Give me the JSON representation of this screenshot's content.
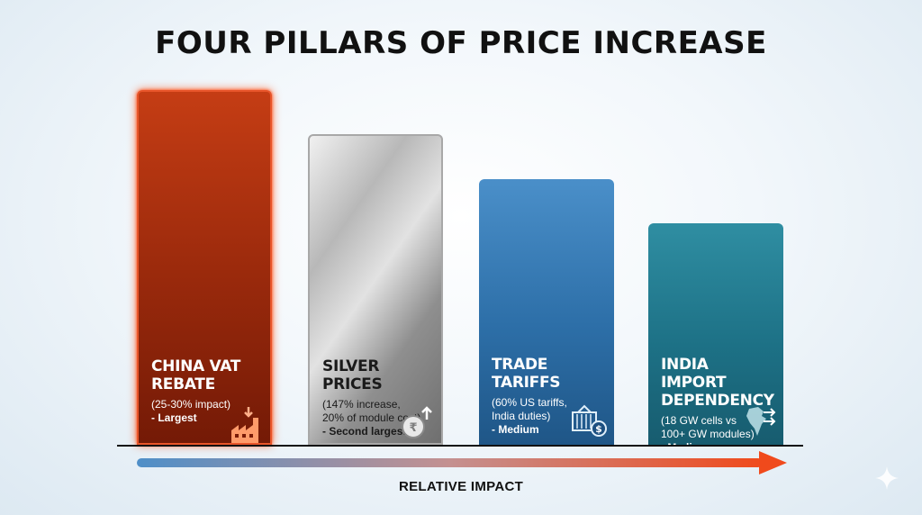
{
  "title": "FOUR PILLARS OF PRICE INCREASE",
  "axis": {
    "label": "RELATIVE IMPACT"
  },
  "chart_data": {
    "type": "bar",
    "title": "FOUR PILLARS OF PRICE INCREASE",
    "xlabel": "RELATIVE IMPACT",
    "ylabel": "",
    "categories": [
      "CHINA VAT REBATE",
      "SILVER PRICES",
      "TRADE TARIFFS",
      "INDIA IMPORT DEPENDENCY"
    ],
    "values": [
      4,
      3.5,
      3,
      2.5
    ],
    "ylim": [
      0,
      4
    ],
    "colors": [
      "#a8300e",
      "#b0b0b0",
      "#2f72ab",
      "#1f7a8f"
    ],
    "pillars": [
      {
        "heading": [
          "CHINA VAT",
          "REBATE"
        ],
        "lines": [
          "(25-30% impact)"
        ],
        "tag": "- Largest",
        "icon": "factory-icon"
      },
      {
        "heading": [
          "SILVER",
          "PRICES"
        ],
        "lines": [
          "(147% increase,",
          "20% of module cost)"
        ],
        "tag": "- Second largest",
        "icon": "coin-up-icon"
      },
      {
        "heading": [
          "TRADE",
          "TARIFFS"
        ],
        "lines": [
          "(60% US tariffs,",
          "India duties)"
        ],
        "tag": "- Medium",
        "icon": "container-dollar-icon"
      },
      {
        "heading": [
          "INDIA IMPORT",
          "DEPENDENCY"
        ],
        "lines": [
          "(18 GW cells vs",
          "100+ GW modules)"
        ],
        "tag": "- Medium",
        "icon": "india-map-icon"
      }
    ]
  }
}
